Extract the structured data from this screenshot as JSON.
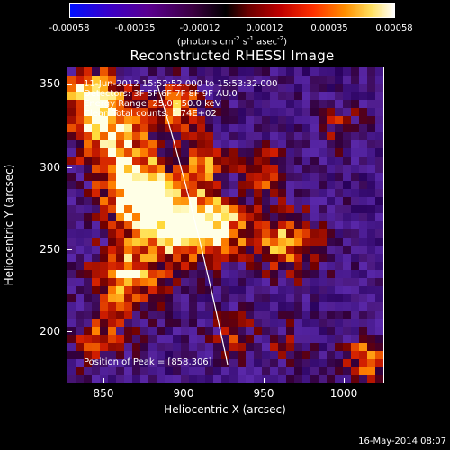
{
  "colorbar": {
    "ticks": [
      "-0.00058",
      "-0.00035",
      "-0.00012",
      "0.00012",
      "0.00035",
      "0.00058"
    ],
    "unit_main": "(photons cm",
    "unit_exp1": "-2",
    "unit_mid": " s",
    "unit_exp2": "-1",
    "unit_end": " asec",
    "unit_exp3": "-2",
    "unit_close": ")"
  },
  "title": "Reconstructed RHESSI Image",
  "info": {
    "time": "11-Jun-2012 15:52:52.000 to 15:53:32.000",
    "detectors": "Detectors: 3F 5F 6F 7F 8F 9F AU.0",
    "energy": "Energy Range: 25.0 - 50.0 keV",
    "clean": "Clean     Total counts: 1.74E+02",
    "peak": "Position of Peak = [858,306]"
  },
  "axes": {
    "xlabel": "Heliocentric X (arcsec)",
    "ylabel": "Heliocentric Y (arcsec)",
    "xticks": [
      "850",
      "900",
      "950",
      "1000"
    ],
    "yticks": [
      "350",
      "300",
      "250",
      "200"
    ]
  },
  "footer": "16-May-2014 08:07",
  "colors": {
    "background": "#000000",
    "frame": "#ffffff",
    "limb": "#ffffff"
  }
}
